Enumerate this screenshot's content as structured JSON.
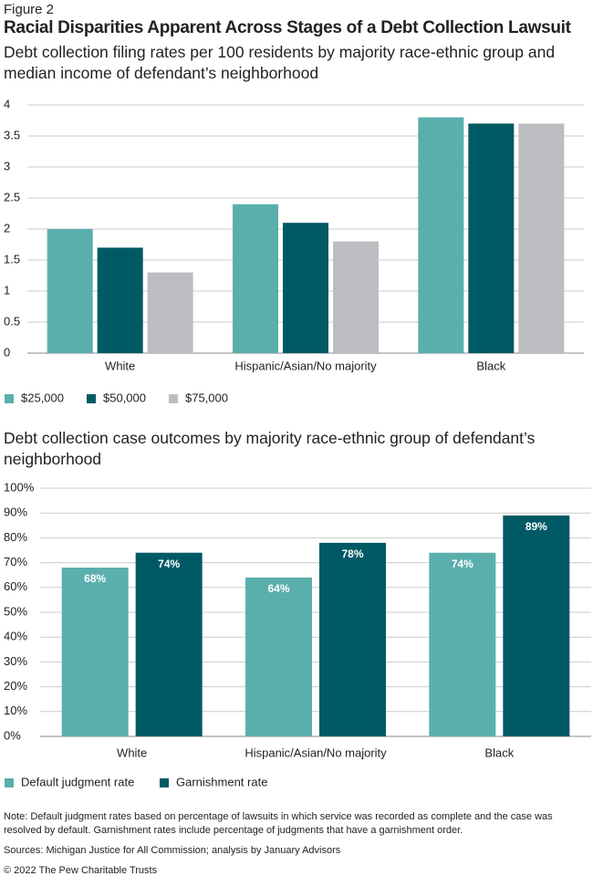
{
  "header": {
    "figure": "Figure 2",
    "title": "Racial Disparities Apparent Across Stages of a Debt Collection Lawsuit"
  },
  "chart_data": [
    {
      "type": "bar",
      "subtitle": "Debt collection filing rates per 100 residents by majority race-ethnic group and median income of defendant’s neighborhood",
      "categories": [
        "White",
        "Hispanic/Asian/No majority",
        "Black"
      ],
      "series": [
        {
          "name": "$25,000",
          "color": "#5aafad",
          "values": [
            2.0,
            2.4,
            3.8
          ]
        },
        {
          "name": "$50,000",
          "color": "#005a66",
          "values": [
            1.7,
            2.1,
            3.7
          ]
        },
        {
          "name": "$75,000",
          "color": "#bcbdc0",
          "values": [
            1.3,
            1.8,
            3.7
          ]
        }
      ],
      "ylim": [
        0,
        4
      ],
      "yticks": [
        0,
        0.5,
        1,
        1.5,
        2,
        2.5,
        3,
        3.5,
        4
      ],
      "grid": true
    },
    {
      "type": "bar",
      "subtitle": "Debt collection case outcomes by majority race-ethnic group of defendant’s neighborhood",
      "categories": [
        "White",
        "Hispanic/Asian/No majority",
        "Black"
      ],
      "series": [
        {
          "name": "Default judgment rate",
          "color": "#5aafad",
          "values": [
            68,
            64,
            74
          ],
          "value_labels": [
            "68%",
            "64%",
            "74%"
          ]
        },
        {
          "name": "Garnishment rate",
          "color": "#005a66",
          "values": [
            74,
            78,
            89
          ],
          "value_labels": [
            "74%",
            "78%",
            "89%"
          ]
        }
      ],
      "ylim": [
        0,
        100
      ],
      "yticks": [
        {
          "value": 0,
          "label": "0%"
        },
        {
          "value": 10,
          "label": "10%"
        },
        {
          "value": 20,
          "label": "20%"
        },
        {
          "value": 30,
          "label": "30%"
        },
        {
          "value": 40,
          "label": "40%"
        },
        {
          "value": 50,
          "label": "50%"
        },
        {
          "value": 60,
          "label": "60%"
        },
        {
          "value": 70,
          "label": "70%"
        },
        {
          "value": 80,
          "label": "80%"
        },
        {
          "value": 90,
          "label": "90%"
        },
        {
          "value": 100,
          "label": "100%"
        }
      ],
      "grid": true
    }
  ],
  "footer": {
    "note": "Note: Default judgment rates based on percentage of lawsuits in which service was recorded as complete and the case was resolved by default. Garnishment rates include percentage of judgments that have a garnishment order.",
    "sources": "Sources: Michigan Justice for All Commission; analysis by January Advisors",
    "copyright": "© 2022 The Pew Charitable Trusts"
  }
}
